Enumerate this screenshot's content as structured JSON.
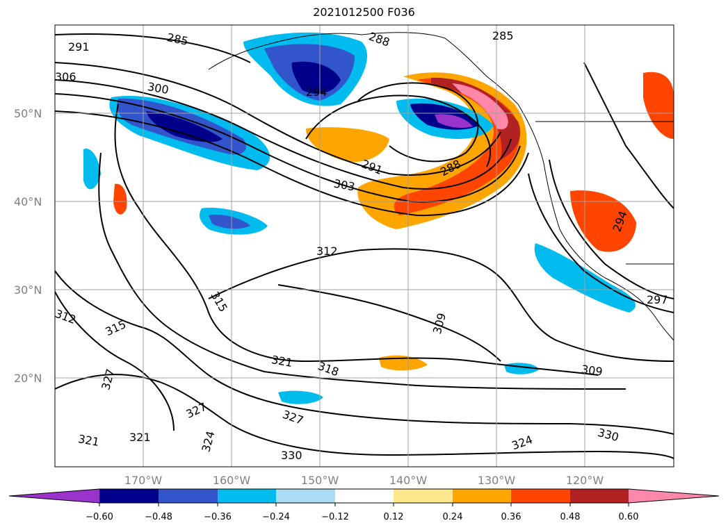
{
  "title": "2021012500 F036",
  "lat_labels": [
    "50°N",
    "40°N",
    "30°N",
    "20°N"
  ],
  "lon_labels": [
    "170°W",
    "160°W",
    "150°W",
    "140°W",
    "130°W",
    "120°W"
  ],
  "contour_labels": [
    "285",
    "288",
    "291",
    "294",
    "297",
    "300",
    "303",
    "306",
    "309",
    "312",
    "315",
    "318",
    "321",
    "324",
    "327",
    "330"
  ],
  "colorbar": {
    "ticks": [
      "−0.60",
      "−0.48",
      "−0.36",
      "−0.24",
      "−0.12",
      "0.12",
      "0.24",
      "0.36",
      "0.48",
      "0.60"
    ],
    "colors": [
      "#9933cc",
      "#00008b",
      "#3355cc",
      "#00bbee",
      "#aaddf5",
      "#ffffff",
      "#ffe88c",
      "#ffa500",
      "#ff4500",
      "#b22222",
      "#ff88aa"
    ]
  }
}
